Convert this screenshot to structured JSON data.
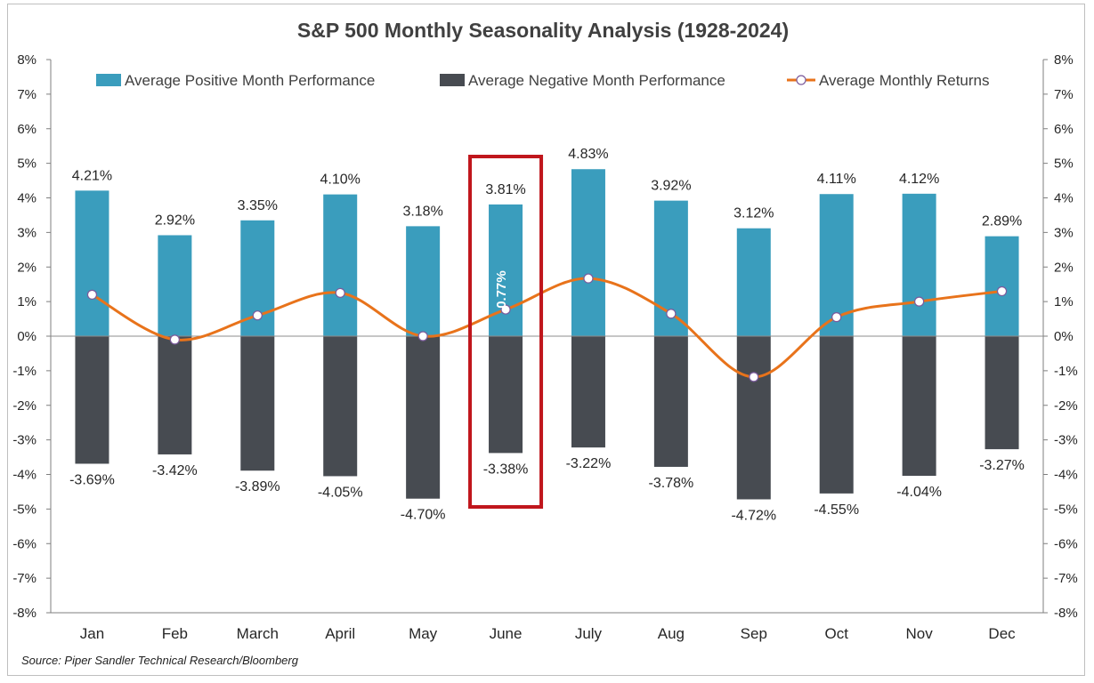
{
  "chart_data": {
    "type": "bar",
    "title": "S&P 500 Monthly Seasonality Analysis (1928-2024)",
    "categories": [
      "Jan",
      "Feb",
      "March",
      "April",
      "May",
      "June",
      "July",
      "Aug",
      "Sep",
      "Oct",
      "Nov",
      "Dec"
    ],
    "series": [
      {
        "name": "Average Positive Month Performance",
        "kind": "bar",
        "color": "#3a9dbd",
        "values": [
          4.21,
          2.92,
          3.35,
          4.1,
          3.18,
          3.81,
          4.83,
          3.92,
          3.12,
          4.11,
          4.12,
          2.89
        ],
        "labels": [
          "4.21%",
          "2.92%",
          "3.35%",
          "4.10%",
          "3.18%",
          "3.81%",
          "4.83%",
          "3.92%",
          "3.12%",
          "4.11%",
          "4.12%",
          "2.89%"
        ]
      },
      {
        "name": "Average Negative Month Performance",
        "kind": "bar",
        "color": "#474b51",
        "values": [
          -3.69,
          -3.42,
          -3.89,
          -4.05,
          -4.7,
          -3.38,
          -3.22,
          -3.78,
          -4.72,
          -4.55,
          -4.04,
          -3.27
        ],
        "labels": [
          "-3.69%",
          "-3.42%",
          "-3.89%",
          "-4.05%",
          "-4.70%",
          "-3.38%",
          "-3.22%",
          "-3.78%",
          "-4.72%",
          "-4.55%",
          "-4.04%",
          "-3.27%"
        ]
      },
      {
        "name": "Average Monthly Returns",
        "kind": "line",
        "color": "#e8731b",
        "values": [
          1.2,
          -0.1,
          0.6,
          1.25,
          0.0,
          0.77,
          1.67,
          0.65,
          -1.18,
          0.55,
          1.0,
          1.3
        ]
      }
    ],
    "ylim": [
      -8,
      8
    ],
    "yticks": [
      "8%",
      "7%",
      "6%",
      "5%",
      "4%",
      "3%",
      "2%",
      "1%",
      "0%",
      "-1%",
      "-2%",
      "-3%",
      "-4%",
      "-5%",
      "-6%",
      "-7%",
      "-8%"
    ],
    "ytick_values": [
      8,
      7,
      6,
      5,
      4,
      3,
      2,
      1,
      0,
      -1,
      -2,
      -3,
      -4,
      -5,
      -6,
      -7,
      -8
    ],
    "highlight": {
      "category": "June",
      "label": "0.77%",
      "color": "#c0161c"
    },
    "legend": "top",
    "source": "Source: Piper Sandler Technical Research/Bloomberg"
  }
}
